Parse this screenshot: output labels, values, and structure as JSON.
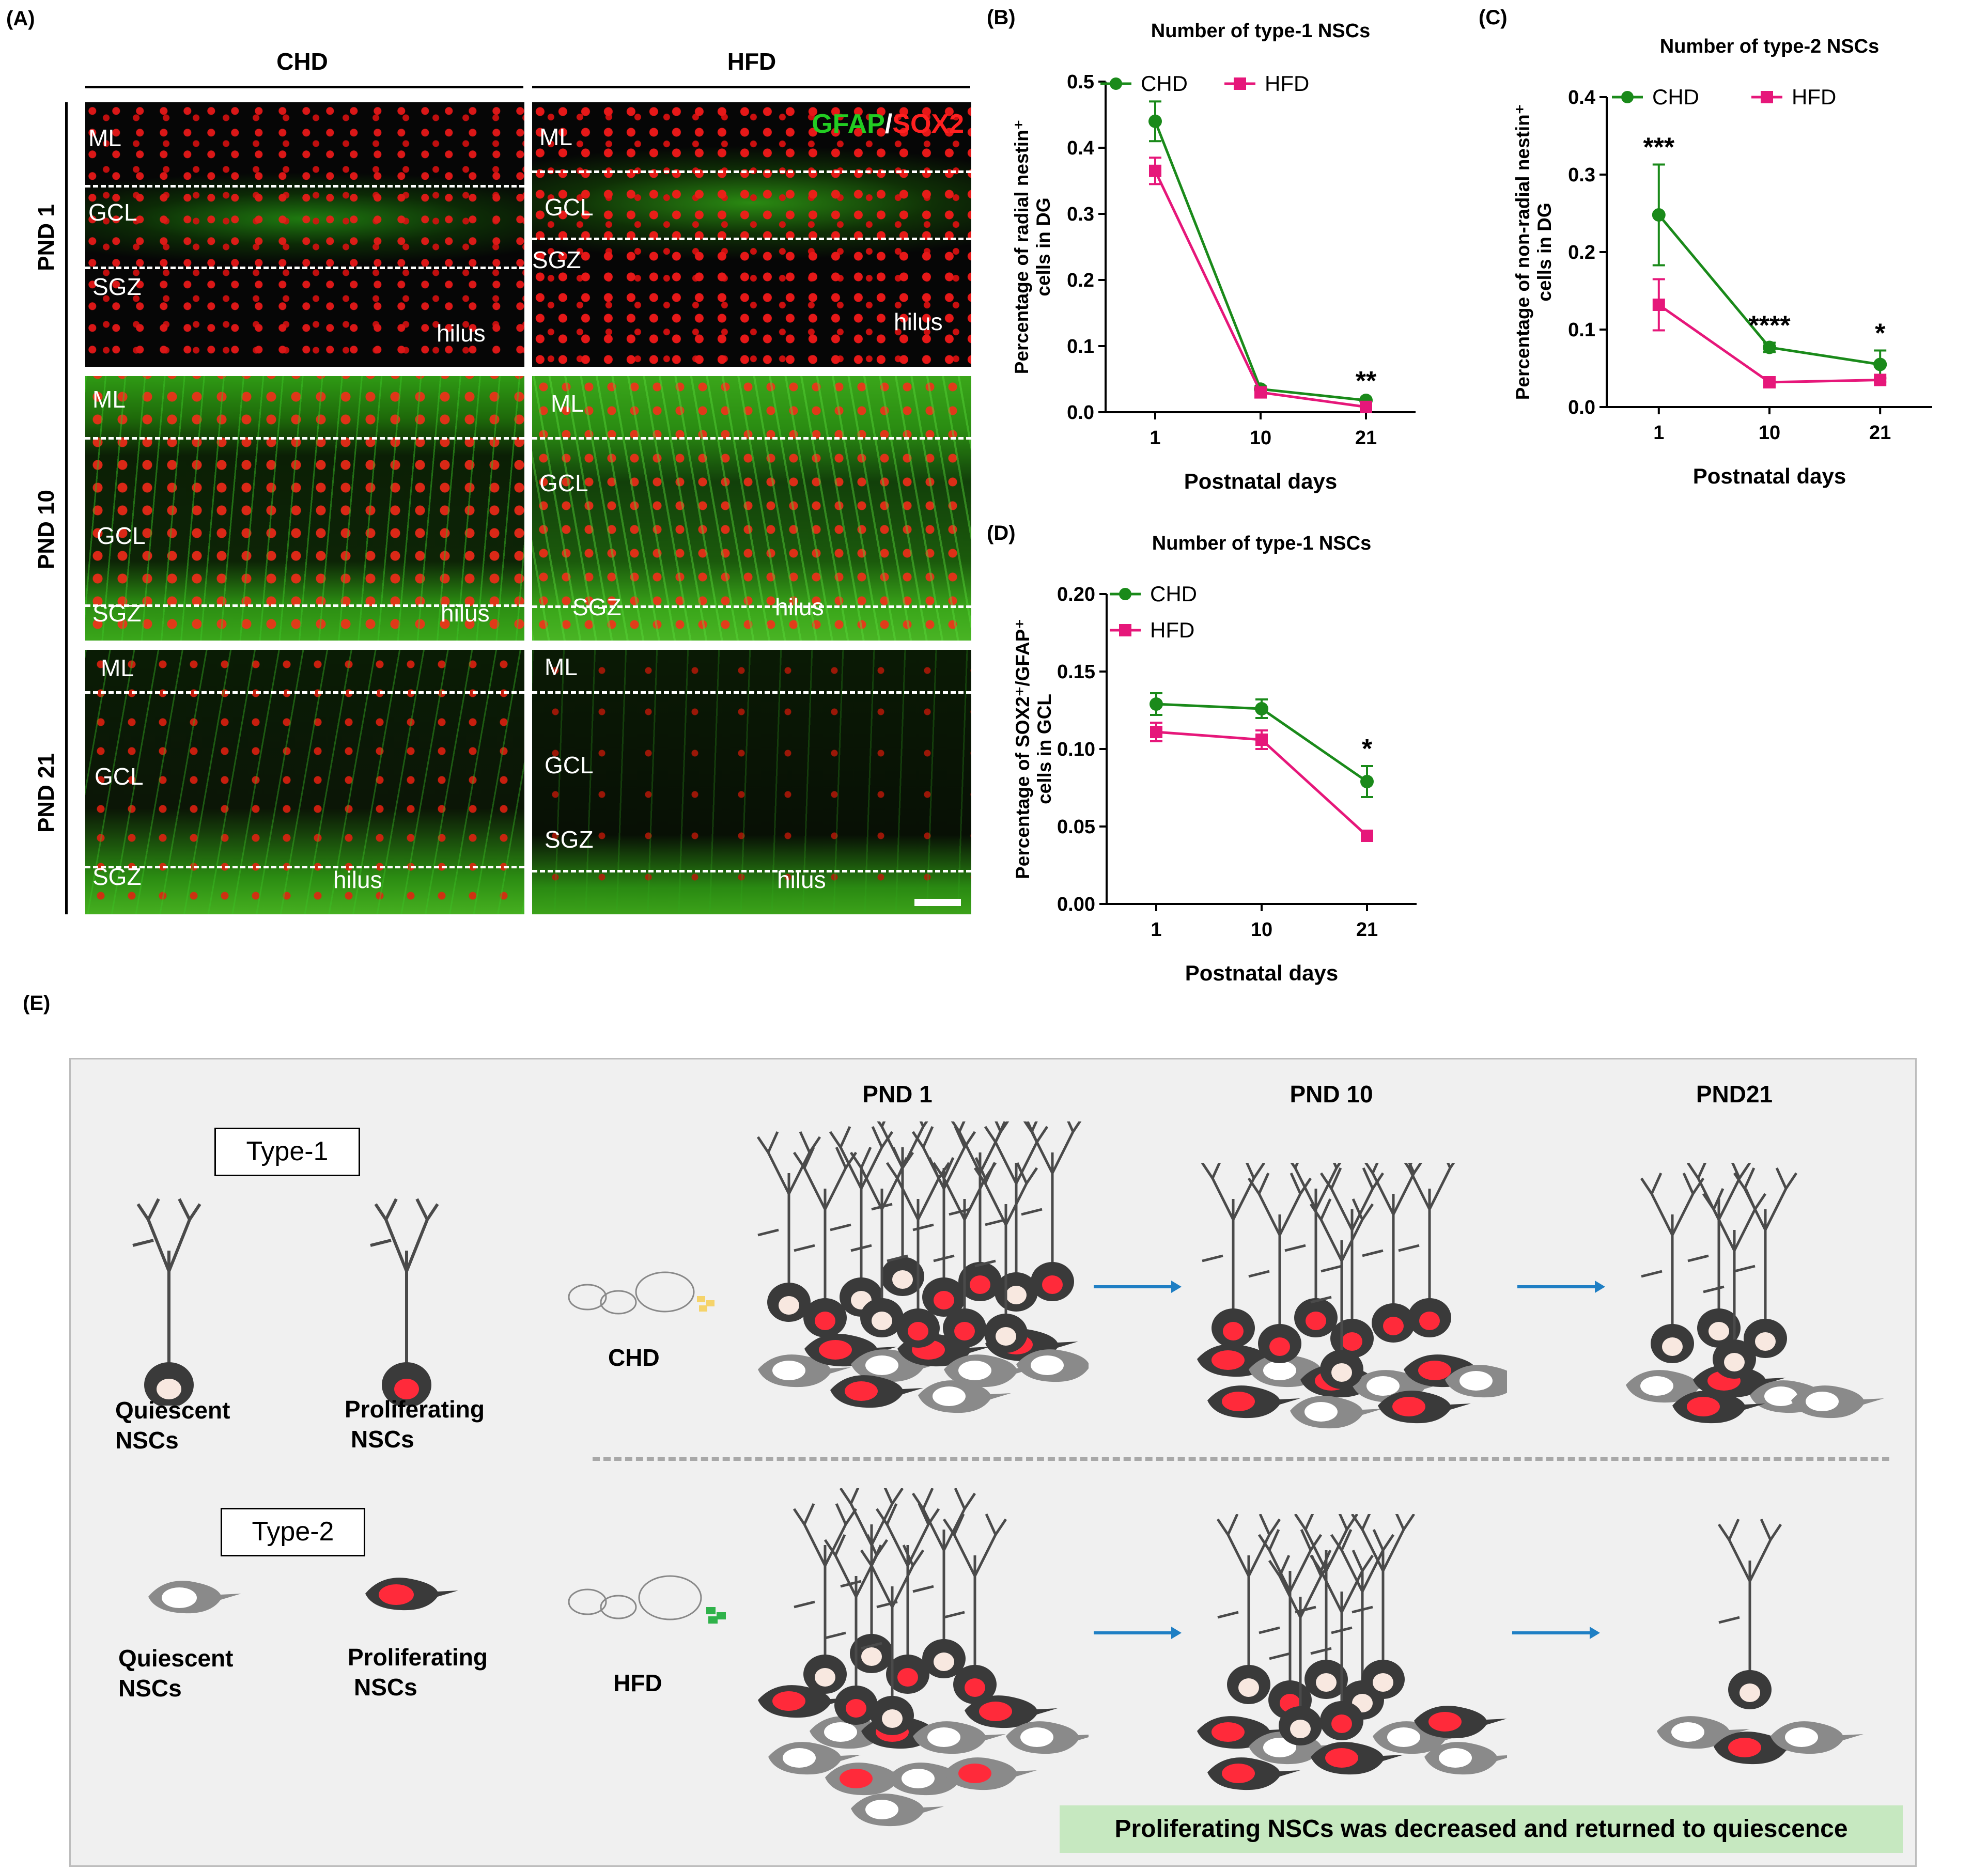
{
  "panel_letters": {
    "a": "(A)",
    "b": "(B)",
    "c": "(C)",
    "d": "(D)",
    "e": "(E)"
  },
  "micrographs": {
    "col_chd": "CHD",
    "col_hfd": "HFD",
    "row_pnd1": "PND 1",
    "row_pnd10": "PND 10",
    "row_pnd21": "PND 21",
    "stain_gfap": "GFAP",
    "stain_sep": "/",
    "stain_sox2": "SOX2",
    "layers": {
      "ml": "ML",
      "gcl": "GCL",
      "sgz": "SGZ",
      "hilus": "hilus"
    }
  },
  "colors": {
    "chd": "#1a8a1a",
    "hfd": "#e6177a",
    "arrow": "#1f7fc4",
    "note_bg": "#c6e8c0"
  },
  "chart_data": [
    {
      "id": "B",
      "type": "line",
      "title": "Number of type-1 NSCs",
      "ylabel_line1": "Percentage of radial nestin⁺",
      "ylabel_line2": "cells in DG",
      "xlabel": "Postnatal days",
      "categories": [
        "1",
        "10",
        "21"
      ],
      "ylim": [
        0,
        0.5
      ],
      "yticks": [
        "0.0",
        "0.1",
        "0.2",
        "0.3",
        "0.4",
        "0.5"
      ],
      "series": [
        {
          "name": "CHD",
          "values": [
            0.44,
            0.035,
            0.018
          ],
          "errors": [
            0.03,
            0.004,
            0.003
          ]
        },
        {
          "name": "HFD",
          "values": [
            0.365,
            0.03,
            0.008
          ],
          "errors": [
            0.02,
            0.003,
            0.002
          ]
        }
      ],
      "significance": [
        "",
        "",
        "**"
      ],
      "legend": "top"
    },
    {
      "id": "C",
      "type": "line",
      "title": "Number of type-2 NSCs",
      "ylabel_line1": "Percentage of non-radial nestin⁺",
      "ylabel_line2": "cells in DG",
      "xlabel": "Postnatal days",
      "categories": [
        "1",
        "10",
        "21"
      ],
      "ylim": [
        0,
        0.4
      ],
      "yticks": [
        "0.0",
        "0.1",
        "0.2",
        "0.3",
        "0.4"
      ],
      "series": [
        {
          "name": "CHD",
          "values": [
            0.248,
            0.077,
            0.055
          ],
          "errors": [
            0.065,
            0.006,
            0.018
          ]
        },
        {
          "name": "HFD",
          "values": [
            0.132,
            0.032,
            0.035
          ],
          "errors": [
            0.033,
            0.004,
            0.003
          ]
        }
      ],
      "significance": [
        "***",
        "****",
        "*"
      ],
      "legend": "top"
    },
    {
      "id": "D",
      "type": "line",
      "title": "Number of type-1 NSCs",
      "ylabel_line1": "Percentage of SOX2⁺/GFAP⁺",
      "ylabel_line2": "cells in GCL",
      "xlabel": "Postnatal days",
      "categories": [
        "1",
        "10",
        "21"
      ],
      "ylim": [
        0,
        0.2
      ],
      "yticks": [
        "0.00",
        "0.05",
        "0.10",
        "0.15",
        "0.20"
      ],
      "series": [
        {
          "name": "CHD",
          "values": [
            0.129,
            0.126,
            0.079
          ],
          "errors": [
            0.007,
            0.006,
            0.01
          ]
        },
        {
          "name": "HFD",
          "values": [
            0.111,
            0.106,
            0.044
          ],
          "errors": [
            0.006,
            0.006,
            0.002
          ]
        }
      ],
      "significance": [
        "",
        "",
        "*"
      ],
      "legend": "top-left"
    }
  ],
  "schematic": {
    "type1_label": "Type-1",
    "type2_label": "Type-2",
    "quiescent_line1": "Quiescent",
    "quiescent_line2": "NSCs",
    "proliferating_line1": "Proliferating",
    "proliferating_line2": "NSCs",
    "stages": [
      "PND 1",
      "PND 10",
      "PND21"
    ],
    "group_chd": "CHD",
    "group_hfd": "HFD",
    "note": "Proliferating  NSCs was decreased  and returned  to quiescence"
  }
}
